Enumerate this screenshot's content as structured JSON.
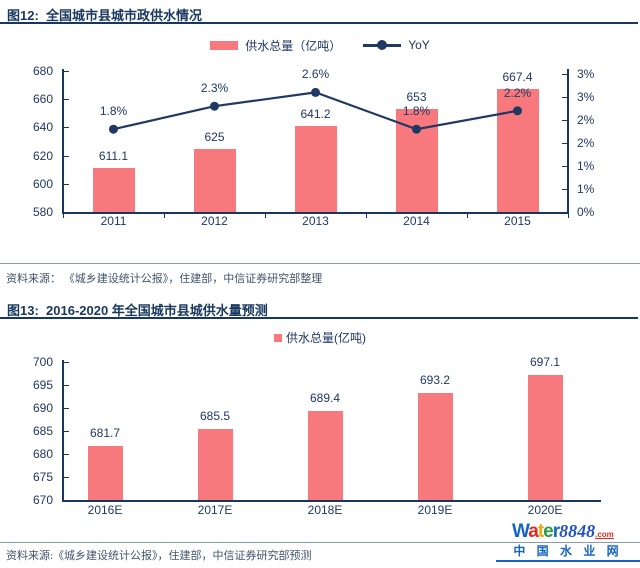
{
  "colors": {
    "bar": "#F8797D",
    "line": "#1F3864",
    "navy_text": "#1F3864",
    "title_navy": "#17375E",
    "axis_navy": "#17375E",
    "divider_gray": "#8A9BB0",
    "source_text": "#3F546B",
    "brand_blue": "#1565C0",
    "brand_red": "#E02A1E",
    "brand_yellow": "#F0A811",
    "brand_green": "#2B9E3F",
    "brand_number_blue": "#2353C4"
  },
  "figure12": {
    "label": "图12:",
    "title": "全国城市县城市政供水情况",
    "legend_bar": "供水总量（亿吨）",
    "legend_line": "YoY",
    "source": "资料来源： 《城乡建设统计公报》，住建部，中信证券研究部整理"
  },
  "figure13": {
    "label": "图13:",
    "title": "2016-2020 年全国城市县城供水量预测",
    "legend_bar": "供水总量(亿吨)",
    "source": "资料来源:《城乡建设统计公报》，住建部，中信证券研究部预测"
  },
  "watermark": {
    "brand": [
      {
        "ch": "W",
        "color": "#1565C0"
      },
      {
        "ch": "a",
        "color": "#E02A1E"
      },
      {
        "ch": "t",
        "color": "#F0A811"
      },
      {
        "ch": "e",
        "color": "#2B9E3F"
      },
      {
        "ch": "r",
        "color": "#1565C0"
      }
    ],
    "number": "8848",
    "domain": ".com",
    "site_name": "中 国 水 业 网"
  },
  "chart_data": [
    {
      "type": "bar+line",
      "title": "图12: 全国城市县城市政供水情况",
      "categories": [
        "2011",
        "2012",
        "2013",
        "2014",
        "2015"
      ],
      "series": [
        {
          "name": "供水总量（亿吨）",
          "type": "bar",
          "axis": "left",
          "values": [
            611.1,
            625,
            641.2,
            653,
            667.4
          ],
          "labels": [
            "611.1",
            "625",
            "641.2",
            "653",
            "667.4"
          ]
        },
        {
          "name": "YoY",
          "type": "line",
          "axis": "right",
          "values": [
            1.8,
            2.3,
            2.6,
            1.8,
            2.2
          ],
          "labels": [
            "1.8%",
            "2.3%",
            "2.6%",
            "1.8%",
            "2.2%"
          ]
        }
      ],
      "left_axis": {
        "min": 580,
        "max": 680,
        "ticks": [
          680,
          660,
          640,
          620,
          600,
          580
        ]
      },
      "right_axis": {
        "min": 0,
        "max": 3,
        "tick_labels_top_to_bottom": [
          "3%",
          "3%",
          "2%",
          "2%",
          "1%",
          "1%",
          "0%"
        ]
      },
      "legend_position": "top",
      "grid": false
    },
    {
      "type": "bar",
      "title": "图13: 2016-2020 年全国城市县城供水量预测",
      "categories": [
        "2016E",
        "2017E",
        "2018E",
        "2019E",
        "2020E"
      ],
      "series": [
        {
          "name": "供水总量(亿吨)",
          "type": "bar",
          "values": [
            681.7,
            685.5,
            689.4,
            693.2,
            697.1
          ],
          "labels": [
            "681.7",
            "685.5",
            "689.4",
            "693.2",
            "697.1"
          ]
        }
      ],
      "left_axis": {
        "min": 670,
        "max": 700,
        "ticks": [
          700,
          695,
          690,
          685,
          680,
          675,
          670
        ]
      },
      "legend_position": "top",
      "grid": false
    }
  ]
}
